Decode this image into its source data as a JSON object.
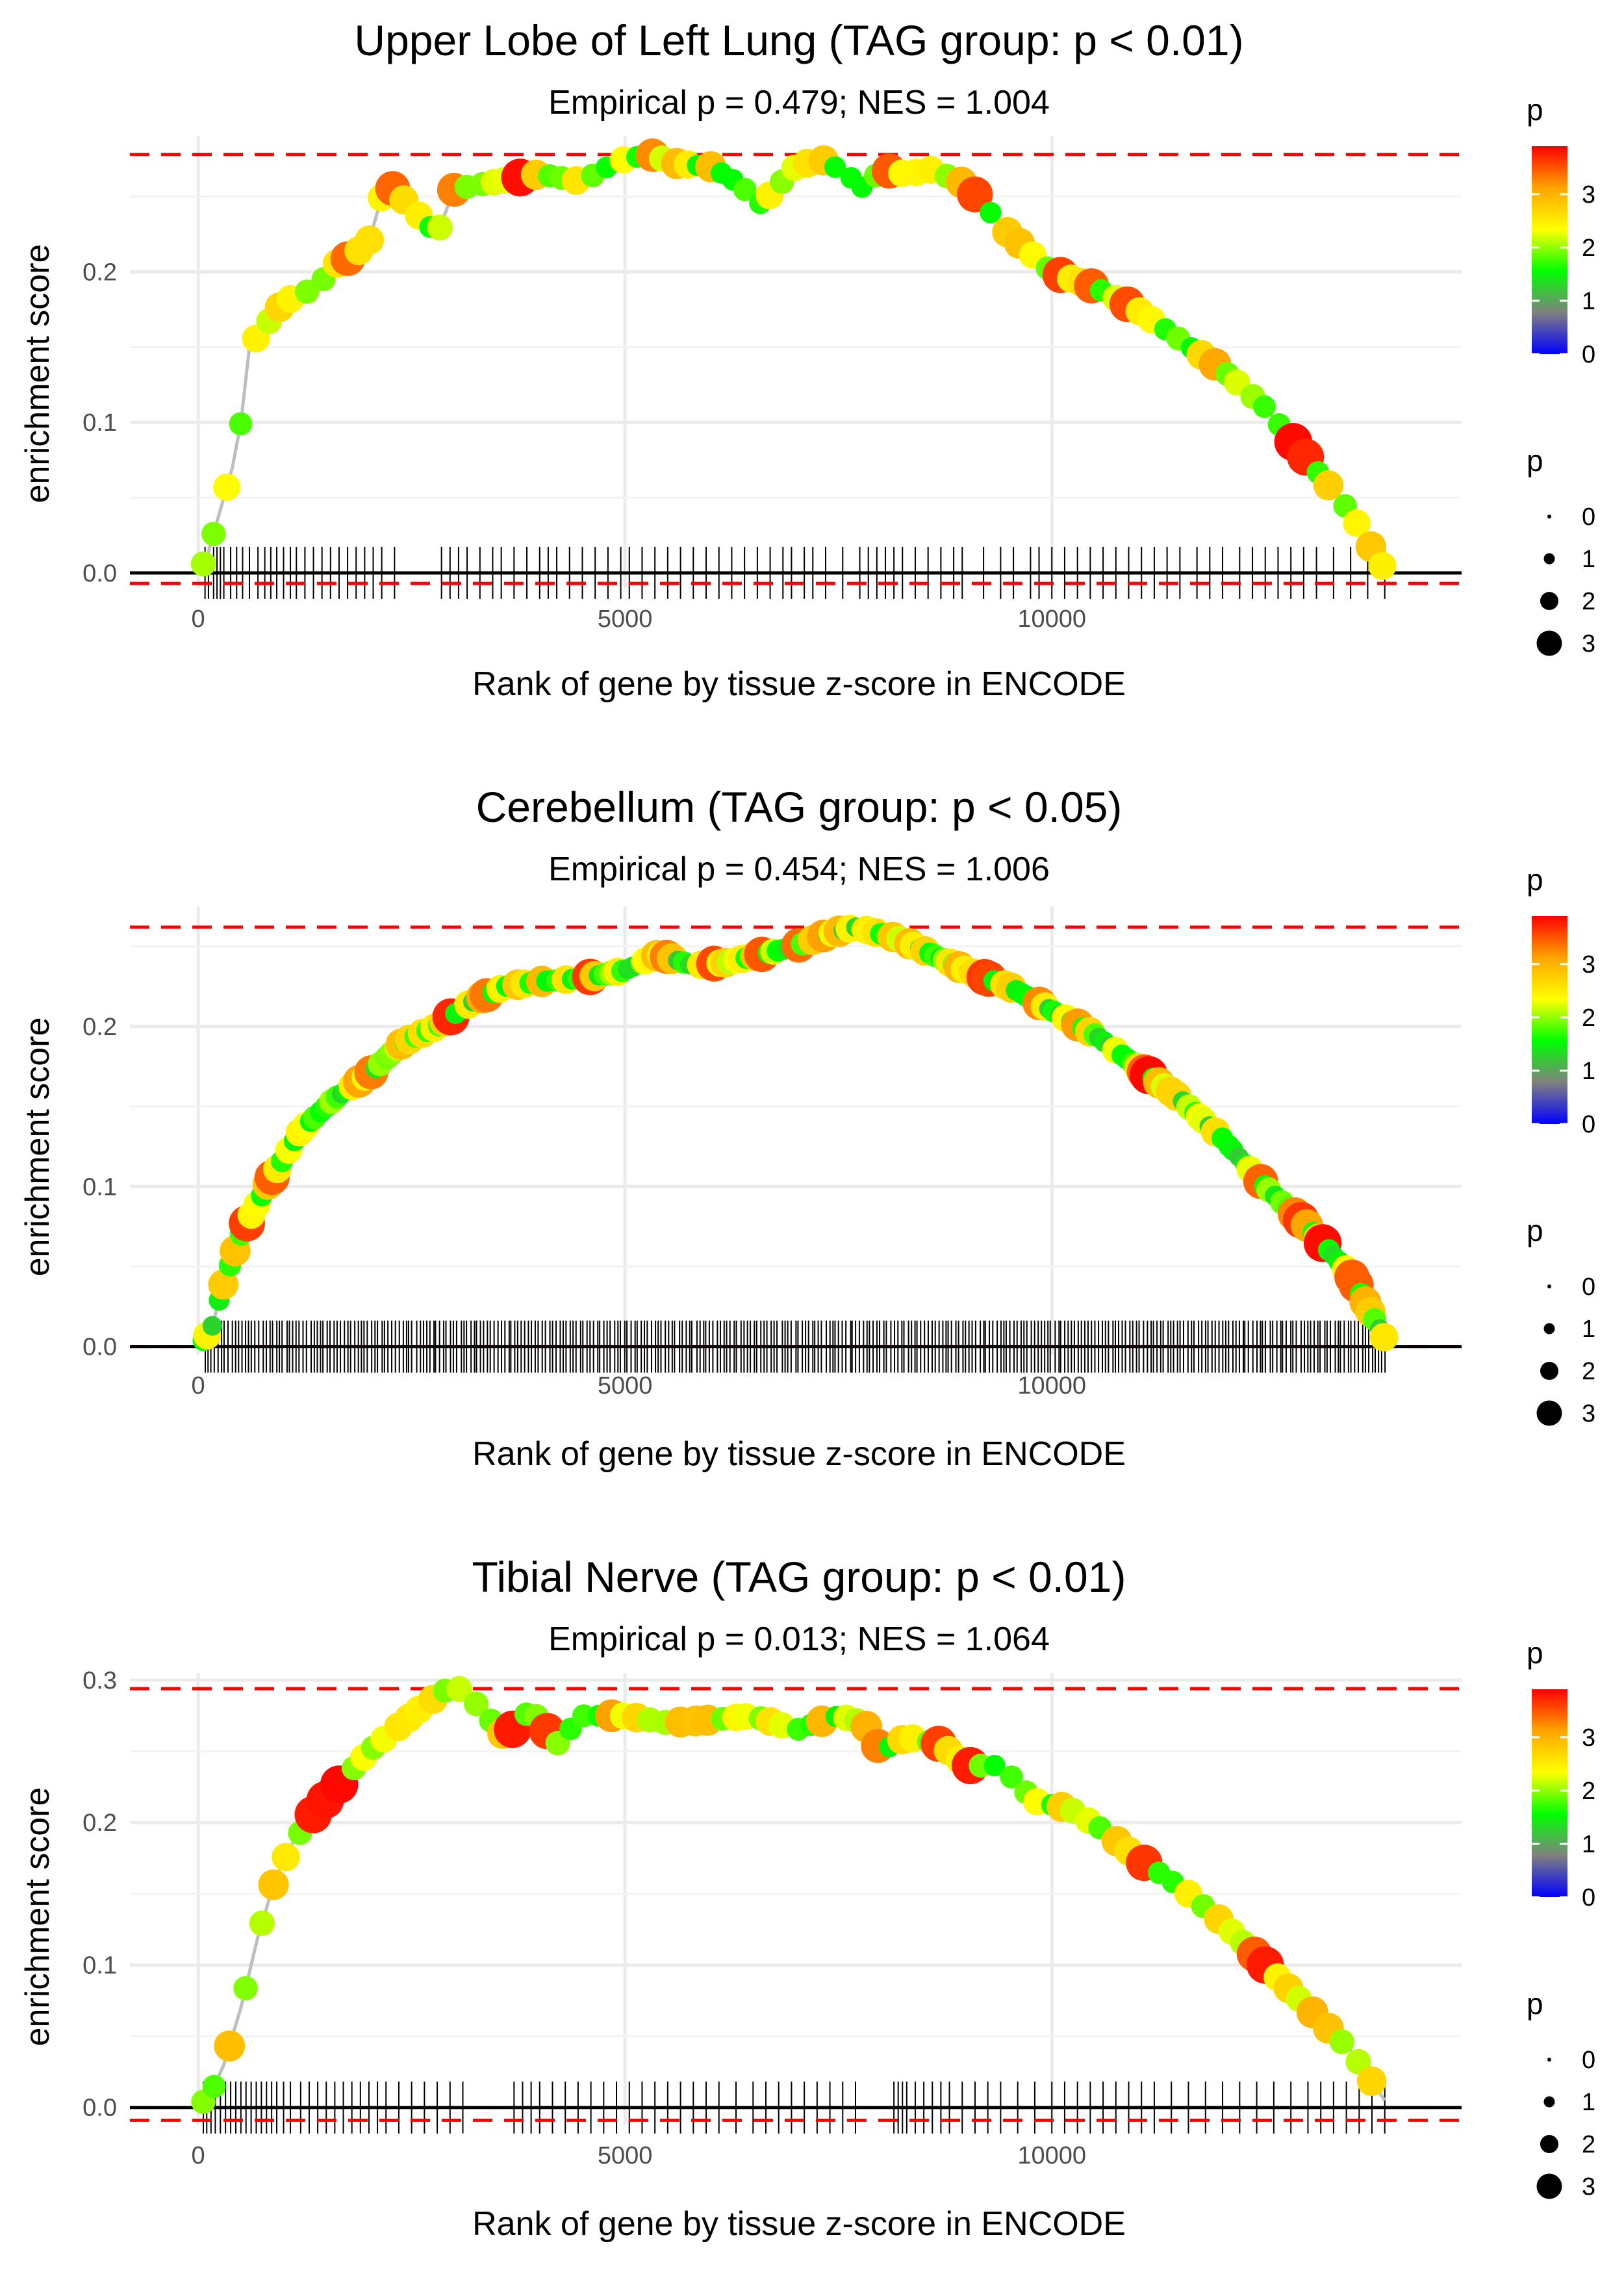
{
  "chart_data": [
    {
      "type": "line",
      "title": "Upper Lobe of Left Lung (TAG group: p < 0.01)",
      "subtitle": "Empirical p = 0.479; NES = 1.004",
      "xlabel": "Rank of gene by tissue z-score in ENCODE",
      "ylabel": "enrichment score",
      "xlim": [
        -800,
        14800
      ],
      "ylim": [
        -0.01,
        0.29
      ],
      "xticks": [
        0,
        5000,
        10000
      ],
      "xtick_labels": [
        "0",
        "5000",
        "10000"
      ],
      "yticks": [
        0.0,
        0.1,
        0.2
      ],
      "ytick_labels": [
        "0.0",
        "0.1",
        "0.2"
      ],
      "hline_max": 0.278,
      "hline_min": -0.007,
      "curve": [
        [
          0,
          0
        ],
        [
          100,
          0.01
        ],
        [
          250,
          0.04
        ],
        [
          400,
          0.07
        ],
        [
          500,
          0.1
        ],
        [
          600,
          0.15
        ],
        [
          800,
          0.165
        ],
        [
          1000,
          0.18
        ],
        [
          1200,
          0.185
        ],
        [
          1400,
          0.19
        ],
        [
          1600,
          0.205
        ],
        [
          1800,
          0.21
        ],
        [
          2000,
          0.22
        ],
        [
          2200,
          0.26
        ],
        [
          2800,
          0.225
        ],
        [
          3000,
          0.255
        ],
        [
          3500,
          0.26
        ],
        [
          4000,
          0.265
        ],
        [
          4500,
          0.26
        ],
        [
          4800,
          0.27
        ],
        [
          5000,
          0.275
        ],
        [
          5300,
          0.278
        ],
        [
          5600,
          0.272
        ],
        [
          6000,
          0.27
        ],
        [
          6300,
          0.26
        ],
        [
          6600,
          0.245
        ],
        [
          7000,
          0.27
        ],
        [
          7300,
          0.275
        ],
        [
          7600,
          0.265
        ],
        [
          7800,
          0.255
        ],
        [
          8000,
          0.268
        ],
        [
          8300,
          0.265
        ],
        [
          8600,
          0.268
        ],
        [
          9000,
          0.258
        ],
        [
          9500,
          0.225
        ],
        [
          10000,
          0.2
        ],
        [
          10500,
          0.19
        ],
        [
          11000,
          0.175
        ],
        [
          11500,
          0.155
        ],
        [
          12000,
          0.135
        ],
        [
          12500,
          0.11
        ],
        [
          13000,
          0.075
        ],
        [
          13500,
          0.04
        ],
        [
          13900,
          0.002
        ]
      ],
      "rug": [
        80,
        120,
        180,
        220,
        260,
        300,
        380,
        450,
        520,
        600,
        700,
        780,
        850,
        920,
        1000,
        1080,
        1150,
        1250,
        1350,
        1450,
        1550,
        1650,
        1750,
        1850,
        1950,
        2050,
        2150,
        2300,
        2850,
        2950,
        3050,
        3150,
        3300,
        3450,
        3550,
        3700,
        3850,
        4000,
        4100,
        4200,
        4350,
        4500,
        4650,
        4800,
        4950,
        5050,
        5200,
        5350,
        5500,
        5650,
        5800,
        5950,
        6100,
        6250,
        6400,
        6550,
        6700,
        6850,
        6950,
        7100,
        7200,
        7350,
        7550,
        7750,
        7850,
        7950,
        8050,
        8150,
        8250,
        8400,
        8550,
        8700,
        8850,
        8950,
        9200,
        9400,
        9550,
        9750,
        9850,
        10000,
        10150,
        10300,
        10450,
        10600,
        10750,
        10900,
        11050,
        11200,
        11350,
        11500,
        11700,
        11850,
        12000,
        12200,
        12350,
        12500,
        12650,
        12800,
        12950,
        13100,
        13300,
        13500,
        13700,
        13900
      ]
    },
    {
      "type": "line",
      "title": "Cerebellum (TAG group: p < 0.05)",
      "subtitle": "Empirical p = 0.454; NES = 1.006",
      "xlabel": "Rank of gene by tissue z-score in ENCODE",
      "ylabel": "enrichment score",
      "xlim": [
        -800,
        14800
      ],
      "ylim": [
        -0.005,
        0.275
      ],
      "xticks": [
        0,
        5000,
        10000
      ],
      "xtick_labels": [
        "0",
        "5000",
        "10000"
      ],
      "yticks": [
        0.0,
        0.1,
        0.2
      ],
      "ytick_labels": [
        "0.0",
        "0.1",
        "0.2"
      ],
      "hline_max": 0.262,
      "hline_min": 0.0,
      "curve": [
        [
          0,
          0
        ],
        [
          150,
          0.01
        ],
        [
          300,
          0.04
        ],
        [
          500,
          0.07
        ],
        [
          800,
          0.1
        ],
        [
          1200,
          0.135
        ],
        [
          1600,
          0.155
        ],
        [
          2000,
          0.17
        ],
        [
          2400,
          0.19
        ],
        [
          2800,
          0.2
        ],
        [
          3200,
          0.215
        ],
        [
          3600,
          0.225
        ],
        [
          4000,
          0.228
        ],
        [
          4500,
          0.23
        ],
        [
          5000,
          0.235
        ],
        [
          5400,
          0.245
        ],
        [
          5800,
          0.238
        ],
        [
          6200,
          0.24
        ],
        [
          6600,
          0.245
        ],
        [
          7000,
          0.25
        ],
        [
          7400,
          0.258
        ],
        [
          7700,
          0.262
        ],
        [
          8200,
          0.255
        ],
        [
          8600,
          0.245
        ],
        [
          9000,
          0.235
        ],
        [
          9500,
          0.225
        ],
        [
          10000,
          0.21
        ],
        [
          10500,
          0.195
        ],
        [
          11000,
          0.175
        ],
        [
          11500,
          0.155
        ],
        [
          12000,
          0.13
        ],
        [
          12500,
          0.1
        ],
        [
          13000,
          0.075
        ],
        [
          13500,
          0.045
        ],
        [
          13900,
          0.005
        ]
      ],
      "rug_range": [
        60,
        13900
      ],
      "rug_step": 40
    },
    {
      "type": "line",
      "title": "Tibial Nerve (TAG group: p < 0.01)",
      "subtitle": "Empirical p = 0.013; NES = 1.064",
      "xlabel": "Rank of gene by tissue z-score in ENCODE",
      "ylabel": "enrichment score",
      "xlim": [
        -800,
        14800
      ],
      "ylim": [
        -0.012,
        0.305
      ],
      "xticks": [
        0,
        5000,
        10000
      ],
      "xtick_labels": [
        "0",
        "5000",
        "10000"
      ],
      "yticks": [
        0.0,
        0.1,
        0.2,
        0.3
      ],
      "ytick_labels": [
        "0.0",
        "0.1",
        "0.2",
        "0.3"
      ],
      "hline_max": 0.294,
      "hline_min": -0.009,
      "curve": [
        [
          0,
          0
        ],
        [
          150,
          0.01
        ],
        [
          300,
          0.03
        ],
        [
          500,
          0.07
        ],
        [
          700,
          0.12
        ],
        [
          900,
          0.16
        ],
        [
          1100,
          0.185
        ],
        [
          1400,
          0.21
        ],
        [
          1700,
          0.23
        ],
        [
          2000,
          0.25
        ],
        [
          2300,
          0.265
        ],
        [
          2600,
          0.28
        ],
        [
          2900,
          0.293
        ],
        [
          3100,
          0.294
        ],
        [
          3600,
          0.26
        ],
        [
          3900,
          0.28
        ],
        [
          4200,
          0.255
        ],
        [
          4500,
          0.275
        ],
        [
          5000,
          0.275
        ],
        [
          5500,
          0.27
        ],
        [
          6000,
          0.272
        ],
        [
          6500,
          0.275
        ],
        [
          7000,
          0.265
        ],
        [
          7500,
          0.275
        ],
        [
          7800,
          0.27
        ],
        [
          8000,
          0.25
        ],
        [
          8300,
          0.26
        ],
        [
          8700,
          0.255
        ],
        [
          9000,
          0.24
        ],
        [
          9400,
          0.24
        ],
        [
          9800,
          0.215
        ],
        [
          10200,
          0.21
        ],
        [
          10600,
          0.195
        ],
        [
          11000,
          0.175
        ],
        [
          11500,
          0.155
        ],
        [
          12000,
          0.13
        ],
        [
          12500,
          0.1
        ],
        [
          13000,
          0.07
        ],
        [
          13500,
          0.04
        ],
        [
          13900,
          0.005
        ]
      ],
      "rug": [
        60,
        100,
        150,
        200,
        260,
        320,
        380,
        440,
        500,
        560,
        620,
        680,
        740,
        800,
        860,
        920,
        1000,
        1080,
        1200,
        1300,
        1400,
        1500,
        1600,
        1700,
        1800,
        1900,
        2000,
        2100,
        2200,
        2350,
        2500,
        2650,
        2800,
        2950,
        3100,
        3700,
        3800,
        3900,
        4000,
        4150,
        4300,
        4450,
        4600,
        4750,
        4900,
        5050,
        5200,
        5350,
        5500,
        5650,
        5800,
        5950,
        6100,
        6300,
        6500,
        6650,
        6800,
        6950,
        7100,
        7250,
        7400,
        7550,
        7700,
        8150,
        8200,
        8250,
        8300,
        8400,
        8500,
        8600,
        8700,
        8800,
        8950,
        9100,
        9250,
        9400,
        9600,
        9800,
        10000,
        10150,
        10300,
        10450,
        10600,
        10750,
        10900,
        11050,
        11200,
        11400,
        11600,
        11800,
        12000,
        12200,
        12400,
        12600,
        12800,
        13000,
        13150,
        13300,
        13450,
        13600,
        13750,
        13900
      ]
    }
  ],
  "legend": {
    "color_title": "p",
    "color_labels": [
      "3",
      "2",
      "1",
      "0"
    ],
    "color_max": 3.9,
    "size_title": "p",
    "size_labels": [
      "0",
      "1",
      "2",
      "3"
    ],
    "size_values": [
      0,
      1,
      2,
      3
    ]
  },
  "colors": {
    "curve": "#bebebe",
    "hline": "#ff0000",
    "zero_line": "#000000",
    "grid": "#ebebeb",
    "rug": "#000000",
    "gradient": [
      "#0000ff",
      "#808080",
      "#00ff00",
      "#ffff00",
      "#ffa500",
      "#ff0000"
    ]
  }
}
